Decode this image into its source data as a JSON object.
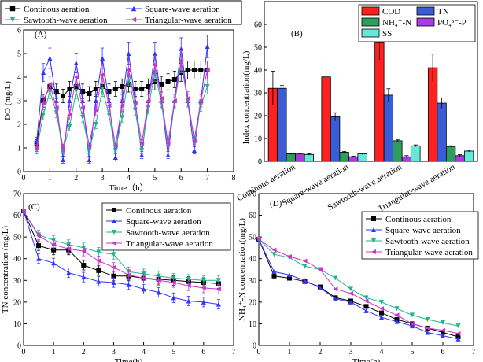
{
  "top_legend": [
    {
      "name": "Continous aeration",
      "color": "#000000",
      "marker": "square"
    },
    {
      "name": "Square-wave aeration",
      "color": "#3333ff",
      "marker": "triangle-up"
    },
    {
      "name": "Sawtooth-wave aeration",
      "color": "#22b48a",
      "marker": "triangle-down"
    },
    {
      "name": "Triangular-wave aeration",
      "color": "#cc33cc",
      "marker": "triangle-left"
    }
  ],
  "chart_data": [
    {
      "id": "A",
      "type": "line",
      "panel_label": "(A)",
      "xlabel": "Time（h）",
      "ylabel": "DO (mg/L)",
      "xlim": [
        0,
        8
      ],
      "ylim": [
        0,
        6
      ],
      "xticks": [
        "0",
        "1",
        "2",
        "3",
        "4",
        "5",
        "6",
        "7",
        "8"
      ],
      "yticks": [
        "0",
        "1",
        "2",
        "3",
        "4",
        "5",
        "6"
      ],
      "x": [
        0.5,
        0.75,
        1.0,
        1.25,
        1.5,
        1.75,
        2.0,
        2.25,
        2.5,
        2.75,
        3.0,
        3.25,
        3.5,
        3.75,
        4.0,
        4.25,
        4.5,
        4.75,
        5.0,
        5.25,
        5.5,
        5.75,
        6.0,
        6.25,
        6.5,
        6.75,
        7.0
      ],
      "series": [
        {
          "name": "Continous aeration",
          "color": "#000000",
          "marker": "square",
          "values": [
            1.2,
            3.0,
            3.6,
            3.4,
            3.2,
            3.5,
            3.6,
            3.4,
            3.3,
            3.5,
            3.6,
            3.4,
            3.5,
            3.6,
            3.7,
            3.5,
            3.5,
            3.6,
            3.8,
            3.7,
            3.8,
            3.9,
            4.2,
            4.3,
            4.3,
            4.3,
            4.3
          ]
        },
        {
          "name": "Square-wave aeration",
          "color": "#3333ff",
          "marker": "triangle-up",
          "values": [
            1.3,
            4.2,
            4.8,
            3.0,
            0.5,
            3.0,
            4.6,
            3.0,
            0.5,
            3.0,
            4.8,
            3.0,
            0.6,
            3.0,
            5.0,
            3.0,
            0.7,
            3.0,
            5.0,
            3.0,
            0.7,
            3.0,
            5.2,
            3.0,
            0.9,
            3.0,
            5.3
          ]
        },
        {
          "name": "Sawtooth-wave aeration",
          "color": "#22b48a",
          "marker": "triangle-down",
          "values": [
            0.9,
            2.4,
            3.4,
            2.5,
            0.9,
            1.9,
            3.4,
            2.3,
            0.9,
            2.0,
            3.5,
            2.4,
            0.9,
            2.3,
            4.0,
            2.6,
            0.9,
            2.7,
            4.2,
            2.9,
            1.1,
            2.9,
            4.6,
            3.0,
            1.4,
            2.8,
            3.6
          ]
        },
        {
          "name": "Triangular-wave aeration",
          "color": "#cc33cc",
          "marker": "triangle-left",
          "values": [
            1.0,
            2.9,
            3.7,
            2.7,
            1.0,
            2.4,
            4.0,
            2.7,
            1.1,
            2.6,
            4.1,
            2.8,
            1.1,
            2.8,
            4.3,
            2.9,
            1.2,
            3.0,
            4.5,
            3.1,
            1.2,
            3.0,
            4.7,
            3.1,
            1.3,
            3.0,
            4.3
          ]
        }
      ]
    },
    {
      "id": "B",
      "type": "bar",
      "panel_label": "(B)",
      "ylabel": "Index concentration(mg/L)",
      "ylim": [
        0,
        70
      ],
      "yticks": [
        "0",
        "10",
        "20",
        "30",
        "40",
        "50",
        "60"
      ],
      "categories": [
        "Continous aeration",
        "Square-wave aeration",
        "Sawtooth-wave aeration",
        "Triangular-wave aeration"
      ],
      "legend": [
        {
          "label": "COD",
          "color": "#ff2020"
        },
        {
          "label": "TN",
          "color": "#3a5dd6"
        },
        {
          "label": "NH₄⁺-N",
          "color": "#2e9e5e"
        },
        {
          "label": "PO₄³⁻-P",
          "color": "#a63ee0"
        },
        {
          "label": "SS",
          "color": "#66e8d8"
        }
      ],
      "series": [
        {
          "name": "COD",
          "color": "#ff2020",
          "values": [
            32,
            37,
            52,
            41
          ],
          "errors": [
            7.5,
            7,
            7.5,
            6
          ]
        },
        {
          "name": "TN",
          "color": "#3a5dd6",
          "values": [
            32,
            19.5,
            29,
            25.5
          ],
          "errors": [
            1.2,
            1.8,
            2.8,
            2.3
          ]
        },
        {
          "name": "NH4+-N",
          "color": "#2e9e5e",
          "values": [
            3.3,
            4,
            9,
            6.5
          ],
          "errors": [
            0.3,
            0.3,
            0.4,
            0.3
          ]
        },
        {
          "name": "PO43--P",
          "color": "#a63ee0",
          "values": [
            3.2,
            2,
            2,
            2.5
          ],
          "errors": [
            0.3,
            0.3,
            0.5,
            0.4
          ]
        },
        {
          "name": "SS",
          "color": "#66e8d8",
          "values": [
            3,
            3.3,
            6.8,
            4.5
          ],
          "errors": [
            0.3,
            0.3,
            0.4,
            0.4
          ]
        }
      ]
    },
    {
      "id": "C",
      "type": "line",
      "panel_label": "(C)",
      "xlabel": "Time(h)",
      "ylabel": "TN concentration (mg/L)",
      "xlim": [
        0,
        7
      ],
      "ylim": [
        0,
        70
      ],
      "xticks": [
        "0",
        "1",
        "2",
        "3",
        "4",
        "5",
        "6",
        "7"
      ],
      "yticks": [
        "0",
        "10",
        "20",
        "30",
        "40",
        "50",
        "60",
        "70"
      ],
      "x": [
        0,
        0.5,
        1,
        1.5,
        2,
        2.5,
        3,
        3.5,
        4,
        4.5,
        5,
        5.5,
        6,
        6.5
      ],
      "legend": [
        "Continous aeration",
        "Square-wave aeration",
        "Sawtooth-wave aeration",
        "Triangular-wave aeration"
      ],
      "series": [
        {
          "name": "Continous aeration",
          "color": "#000000",
          "marker": "square",
          "values": [
            62,
            46,
            44,
            44,
            37,
            34.5,
            32,
            32,
            31,
            30.5,
            30,
            29.5,
            29,
            28.5
          ]
        },
        {
          "name": "Square-wave aeration",
          "color": "#3333ff",
          "marker": "triangle-up",
          "values": [
            62,
            40,
            38,
            33.5,
            31.5,
            29.5,
            29,
            28,
            26,
            24.5,
            22,
            20.5,
            20,
            19
          ]
        },
        {
          "name": "Sawtooth-wave aeration",
          "color": "#22b48a",
          "marker": "triangle-down",
          "values": [
            62,
            51,
            48.5,
            46.5,
            45,
            43,
            42,
            34,
            33,
            32,
            31,
            30.5,
            30,
            30
          ]
        },
        {
          "name": "Triangular-wave aeration",
          "color": "#cc33cc",
          "marker": "triangle-left",
          "values": [
            62,
            50.5,
            46.5,
            44.5,
            43.5,
            39,
            36,
            32.5,
            31,
            30,
            29,
            27.5,
            26.5,
            26
          ]
        }
      ]
    },
    {
      "id": "D",
      "type": "line",
      "panel_label": "(D)",
      "xlabel": "Time(h)",
      "ylabel": "NH₄⁺-N concentration(mg/L)",
      "xlim": [
        0,
        7
      ],
      "ylim": [
        0,
        70
      ],
      "xticks": [
        "0",
        "1",
        "2",
        "3",
        "4",
        "5",
        "6",
        "7"
      ],
      "yticks": [
        "0",
        "10",
        "20",
        "30",
        "40",
        "50",
        "60",
        "70"
      ],
      "x": [
        0,
        0.5,
        1,
        1.5,
        2,
        2.5,
        3,
        3.5,
        4,
        4.5,
        5,
        5.5,
        6,
        6.5
      ],
      "legend": [
        "Continous aeration",
        "Square-wave aeration",
        "Sawtooth-wave aeration",
        "Triangular-wave aeration"
      ],
      "series": [
        {
          "name": "Continous aeration",
          "color": "#000000",
          "marker": "square",
          "values": [
            49,
            32,
            31,
            29.5,
            27,
            22,
            20.5,
            18,
            15,
            12,
            10,
            8,
            6,
            4
          ]
        },
        {
          "name": "Square-wave aeration",
          "color": "#3333ff",
          "marker": "triangle-up",
          "values": [
            49,
            34,
            32.5,
            30,
            26.5,
            21.5,
            20,
            16,
            13,
            11,
            9,
            6,
            4.5,
            3
          ]
        },
        {
          "name": "Sawtooth-wave aeration",
          "color": "#22b48a",
          "marker": "triangle-down",
          "values": [
            49,
            42,
            40.5,
            36.5,
            35,
            31,
            26,
            22,
            20,
            17,
            14,
            12,
            10.5,
            9
          ]
        },
        {
          "name": "Triangular-wave aeration",
          "color": "#cc33cc",
          "marker": "triangle-left",
          "values": [
            49,
            44,
            41,
            39,
            35,
            26,
            24,
            20.5,
            17,
            14,
            10,
            8,
            7,
            5.5
          ]
        }
      ]
    }
  ]
}
